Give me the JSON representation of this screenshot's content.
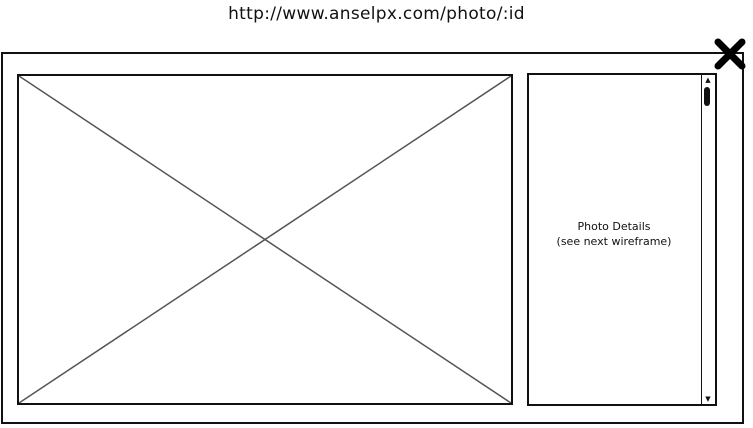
{
  "address_bar": {
    "url": "http://www.anselpx.com/photo/:id"
  },
  "modal": {
    "close_icon": "close-icon",
    "image_placeholder_icon": "image-placeholder-x",
    "details": {
      "line1": "Photo Details",
      "line2": "(see next wireframe)"
    },
    "scrollbar": {
      "up_icon": "scroll-up-arrow-icon",
      "down_icon": "scroll-down-arrow-icon",
      "up_glyph": "▲",
      "down_glyph": "▼"
    }
  }
}
